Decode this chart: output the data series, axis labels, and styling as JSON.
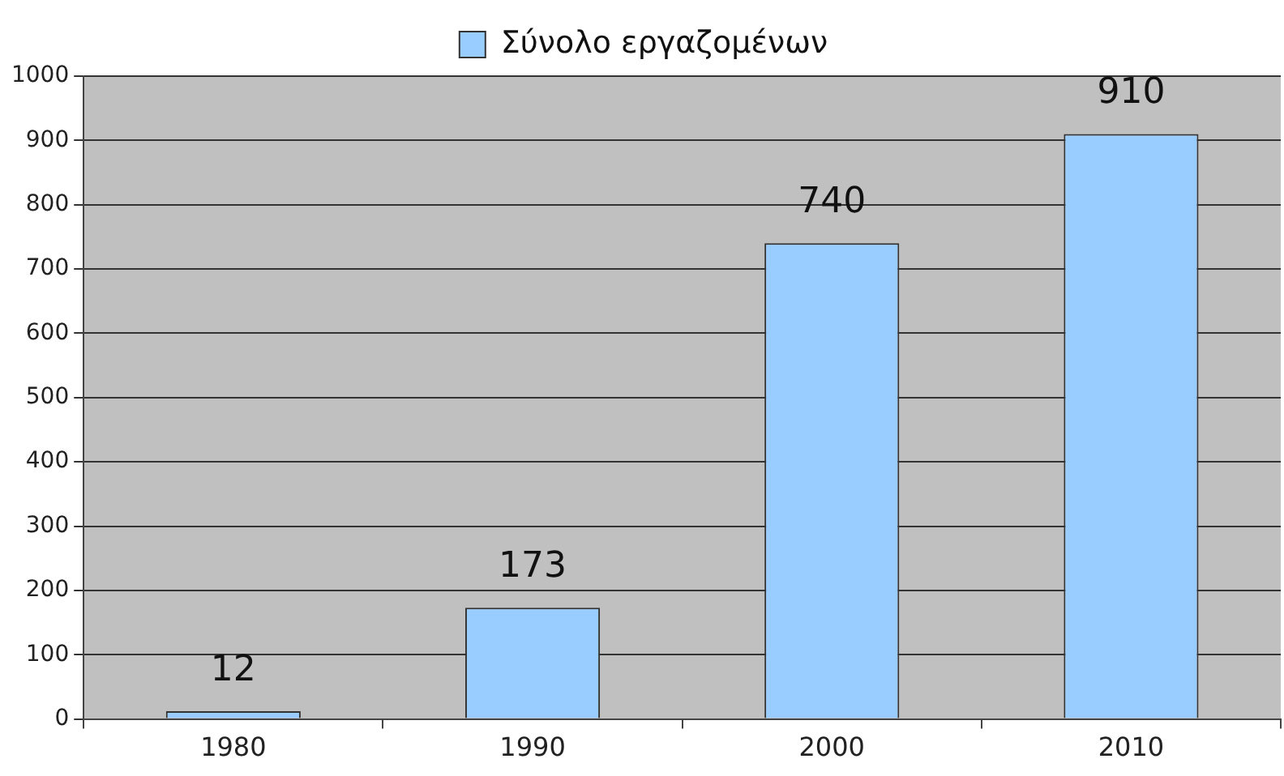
{
  "chart_data": {
    "type": "bar",
    "categories": [
      "1980",
      "1990",
      "2000",
      "2010"
    ],
    "series": [
      {
        "name": "Σύνολο εργαζομένων",
        "color": "#99ccff",
        "values": [
          12,
          173,
          740,
          910
        ]
      }
    ],
    "ylim": [
      0,
      1000
    ],
    "yticks": [
      0,
      100,
      200,
      300,
      400,
      500,
      600,
      700,
      800,
      900,
      1000
    ],
    "grid": "y",
    "legend": "top",
    "data_labels": true
  }
}
